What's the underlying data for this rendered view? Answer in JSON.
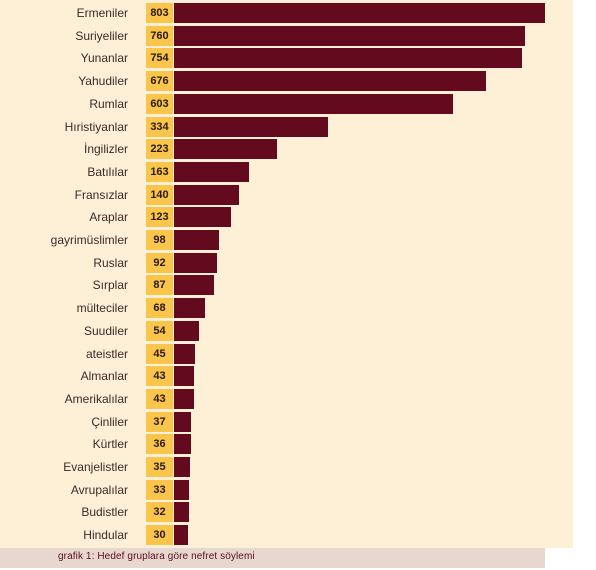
{
  "chart_data": {
    "type": "bar",
    "orientation": "horizontal",
    "categories": [
      "Ermeniler",
      "Suriyeliler",
      "Yunanlar",
      "Yahudiler",
      "Rumlar",
      "Hıristiyanlar",
      "İngilizler",
      "Batılılar",
      "Fransızlar",
      "Araplar",
      "gayrimüslimler",
      "Ruslar",
      "Sırplar",
      "mülteciler",
      "Suudiler",
      "ateistler",
      "Almanlar",
      "Amerikalılar",
      "Çinliler",
      "Kürtler",
      "Evanjelistler",
      "Avrupalılar",
      "Budistler",
      "Hindular"
    ],
    "values": [
      803,
      760,
      754,
      676,
      603,
      334,
      223,
      163,
      140,
      123,
      98,
      92,
      87,
      68,
      54,
      45,
      43,
      43,
      37,
      36,
      35,
      33,
      32,
      30
    ],
    "title": "",
    "xlabel": "",
    "ylabel": "",
    "xlim": [
      0,
      803
    ],
    "grid": false,
    "legend": "none"
  },
  "caption": "grafik 1: Hedef gruplara göre nefret söylemi",
  "colors": {
    "panel_background": "#fdf0d6",
    "bar": "#640a1e",
    "value_box": "#f9c54a",
    "caption_background": "#e8d7cf",
    "caption_text": "#5a1020"
  }
}
